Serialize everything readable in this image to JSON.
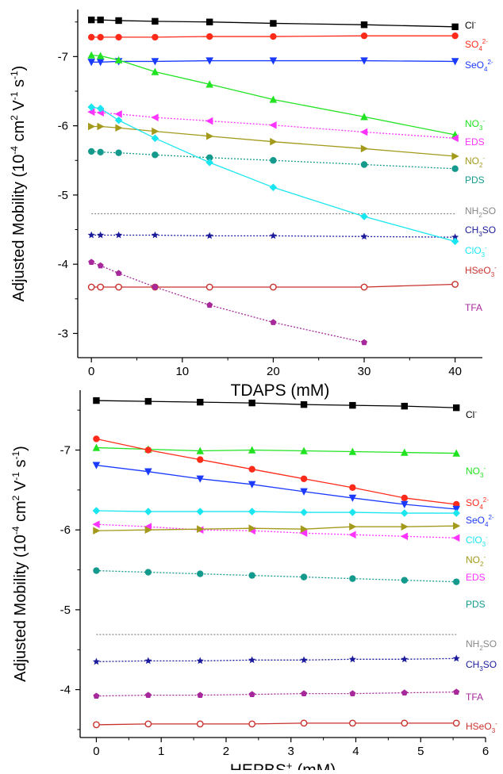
{
  "chart_data": [
    {
      "type": "line",
      "xlabel": "TDAPS (mM)",
      "ylabel": "Adjusted Mobility (10⁻⁴ cm² V⁻¹ s⁻¹)",
      "xlim": [
        -1.5,
        43
      ],
      "ylim": [
        -2.65,
        -7.68
      ],
      "x_ticks": [
        0,
        10,
        20,
        30,
        40
      ],
      "y_ticks": [
        -3,
        -4,
        -5,
        -6,
        -7
      ],
      "legend": "series labels at right end of each curve",
      "grid": false,
      "series": [
        {
          "name": "Cl⁻",
          "color": "#000000",
          "marker": "square",
          "dash": false,
          "x": [
            0,
            1,
            3,
            7,
            13,
            20,
            30,
            40
          ],
          "y": [
            -7.53,
            -7.53,
            -7.52,
            -7.51,
            -7.5,
            -7.48,
            -7.46,
            -7.43
          ]
        },
        {
          "name": "SO₄²⁻",
          "color": "#ff2a1a",
          "marker": "circle",
          "dash": false,
          "x": [
            0,
            1,
            3,
            7,
            13,
            20,
            30,
            40
          ],
          "y": [
            -7.28,
            -7.28,
            -7.28,
            -7.28,
            -7.29,
            -7.29,
            -7.3,
            -7.3
          ]
        },
        {
          "name": "SeO₄²⁻",
          "color": "#1a3aff",
          "marker": "triangle-down",
          "dash": false,
          "x": [
            0,
            1,
            3,
            7,
            13,
            20,
            30,
            40
          ],
          "y": [
            -6.92,
            -6.92,
            -6.93,
            -6.93,
            -6.94,
            -6.94,
            -6.94,
            -6.93
          ]
        },
        {
          "name": "NO₃⁻",
          "color": "#22e322",
          "marker": "triangle-up",
          "dash": false,
          "x": [
            0,
            1,
            3,
            7,
            13,
            20,
            30,
            40
          ],
          "y": [
            -7.02,
            -7.01,
            -6.95,
            -6.78,
            -6.6,
            -6.38,
            -6.13,
            -5.87
          ]
        },
        {
          "name": "EDS",
          "color": "#ff33ff",
          "marker": "triangle-left",
          "dash": true,
          "x": [
            0,
            1,
            3,
            7,
            13,
            20,
            30,
            40
          ],
          "y": [
            -6.2,
            -6.19,
            -6.17,
            -6.12,
            -6.07,
            -6.01,
            -5.91,
            -5.82
          ]
        },
        {
          "name": "NO₂⁻",
          "color": "#a39a1c",
          "marker": "triangle-right",
          "dash": false,
          "x": [
            0,
            1,
            3,
            7,
            13,
            20,
            30,
            40
          ],
          "y": [
            -5.99,
            -5.99,
            -5.97,
            -5.92,
            -5.85,
            -5.77,
            -5.67,
            -5.56
          ]
        },
        {
          "name": "PDS",
          "color": "#139a8c",
          "marker": "circle",
          "dash": true,
          "x": [
            0,
            1,
            3,
            7,
            13,
            20,
            30,
            40
          ],
          "y": [
            -5.63,
            -5.62,
            -5.61,
            -5.58,
            -5.54,
            -5.5,
            -5.44,
            -5.38
          ]
        },
        {
          "name": "NH₂SO",
          "color": "#888888",
          "marker": "none",
          "dash": true,
          "x": [
            0,
            40
          ],
          "y": [
            -4.73,
            -4.73
          ]
        },
        {
          "name": "CH₃SO",
          "color": "#1a1a9a",
          "marker": "star",
          "dash": true,
          "x": [
            0,
            1,
            3,
            7,
            13,
            20,
            30,
            40
          ],
          "y": [
            -4.42,
            -4.42,
            -4.42,
            -4.42,
            -4.41,
            -4.41,
            -4.4,
            -4.39
          ]
        },
        {
          "name": "ClO₃⁻",
          "color": "#1ae6f0",
          "marker": "diamond",
          "dash": false,
          "x": [
            0,
            1,
            3,
            7,
            13,
            20,
            30,
            40
          ],
          "y": [
            -6.27,
            -6.25,
            -6.08,
            -5.82,
            -5.47,
            -5.11,
            -4.69,
            -4.33
          ]
        },
        {
          "name": "HSeO₃⁻",
          "color": "#c8322e",
          "marker": "circle-open",
          "dash": false,
          "x": [
            0,
            1,
            3,
            7,
            13,
            20,
            30,
            40
          ],
          "y": [
            -3.67,
            -3.67,
            -3.67,
            -3.67,
            -3.67,
            -3.67,
            -3.67,
            -3.71
          ]
        },
        {
          "name": "TFA",
          "color": "#a6289a",
          "marker": "pentagon",
          "dash": true,
          "x": [
            0,
            1,
            3,
            7,
            13,
            20,
            30
          ],
          "y": [
            -4.03,
            -3.98,
            -3.87,
            -3.67,
            -3.41,
            -3.16,
            -2.87
          ]
        }
      ]
    },
    {
      "type": "line",
      "xlabel": "HEPBS⁺ (mM)",
      "ylabel": "Adjusted Mobility (10⁻⁴ cm² V⁻¹ s⁻¹)",
      "xlim": [
        -0.25,
        6.0
      ],
      "ylim": [
        -3.4,
        -7.75
      ],
      "x_ticks": [
        0,
        1,
        2,
        3,
        4,
        5,
        6
      ],
      "y_ticks": [
        -4,
        -5,
        -6,
        -7
      ],
      "legend": "series labels at right end of each curve",
      "grid": false,
      "series": [
        {
          "name": "Cl⁻",
          "color": "#000000",
          "marker": "square",
          "dash": false,
          "x": [
            0,
            0.8,
            1.6,
            2.4,
            3.2,
            3.95,
            4.75,
            5.55
          ],
          "y": [
            -7.62,
            -7.61,
            -7.6,
            -7.59,
            -7.57,
            -7.56,
            -7.55,
            -7.53
          ]
        },
        {
          "name": "NO₃⁻",
          "color": "#22e322",
          "marker": "triangle-up",
          "dash": false,
          "x": [
            0,
            0.8,
            1.6,
            2.4,
            3.2,
            3.95,
            4.75,
            5.55
          ],
          "y": [
            -7.03,
            -7.01,
            -6.99,
            -7.0,
            -6.99,
            -6.98,
            -6.97,
            -6.96
          ]
        },
        {
          "name": "SO₄²⁻",
          "color": "#ff2a1a",
          "marker": "circle",
          "dash": false,
          "x": [
            0,
            0.8,
            1.6,
            2.4,
            3.2,
            3.95,
            4.75,
            5.55
          ],
          "y": [
            -7.14,
            -7.0,
            -6.88,
            -6.76,
            -6.64,
            -6.53,
            -6.4,
            -6.32
          ]
        },
        {
          "name": "SeO₄²⁻",
          "color": "#1a3aff",
          "marker": "triangle-down",
          "dash": false,
          "x": [
            0,
            0.8,
            1.6,
            2.4,
            3.2,
            3.95,
            4.75,
            5.55
          ],
          "y": [
            -6.81,
            -6.73,
            -6.64,
            -6.57,
            -6.48,
            -6.4,
            -6.32,
            -6.26
          ]
        },
        {
          "name": "ClO₃⁻",
          "color": "#1ae6f0",
          "marker": "diamond",
          "dash": false,
          "x": [
            0,
            0.8,
            1.6,
            2.4,
            3.2,
            3.95,
            4.75,
            5.55
          ],
          "y": [
            -6.24,
            -6.23,
            -6.23,
            -6.23,
            -6.22,
            -6.22,
            -6.21,
            -6.21
          ]
        },
        {
          "name": "EDS",
          "color": "#ff33ff",
          "marker": "triangle-left",
          "dash": true,
          "x": [
            0,
            0.8,
            1.6,
            2.4,
            3.2,
            3.95,
            4.75,
            5.55
          ],
          "y": [
            -6.07,
            -6.04,
            -6.0,
            -5.99,
            -5.96,
            -5.94,
            -5.92,
            -5.9
          ]
        },
        {
          "name": "NO₂⁻",
          "color": "#a39a1c",
          "marker": "triangle-right",
          "dash": false,
          "x": [
            0,
            0.8,
            1.6,
            2.4,
            3.2,
            3.95,
            4.75,
            5.55
          ],
          "y": [
            -5.99,
            -6.0,
            -6.01,
            -6.02,
            -6.01,
            -6.04,
            -6.04,
            -6.05
          ]
        },
        {
          "name": "PDS",
          "color": "#139a8c",
          "marker": "circle",
          "dash": true,
          "x": [
            0,
            0.8,
            1.6,
            2.4,
            3.2,
            3.95,
            4.75,
            5.55
          ],
          "y": [
            -5.49,
            -5.47,
            -5.45,
            -5.43,
            -5.41,
            -5.39,
            -5.37,
            -5.35
          ]
        },
        {
          "name": "NH₂SO",
          "color": "#888888",
          "marker": "none",
          "dash": true,
          "x": [
            0,
            5.55
          ],
          "y": [
            -4.69,
            -4.69
          ]
        },
        {
          "name": "CH₃SO",
          "color": "#1a1a9a",
          "marker": "star",
          "dash": true,
          "x": [
            0,
            0.8,
            1.6,
            2.4,
            3.2,
            3.95,
            4.75,
            5.55
          ],
          "y": [
            -4.35,
            -4.36,
            -4.36,
            -4.37,
            -4.37,
            -4.38,
            -4.38,
            -4.39
          ]
        },
        {
          "name": "TFA",
          "color": "#a6289a",
          "marker": "pentagon",
          "dash": true,
          "x": [
            0,
            0.8,
            1.6,
            2.4,
            3.2,
            3.95,
            4.75,
            5.55
          ],
          "y": [
            -3.92,
            -3.93,
            -3.93,
            -3.94,
            -3.95,
            -3.95,
            -3.96,
            -3.97
          ]
        },
        {
          "name": "HSeO₃⁻",
          "color": "#c8322e",
          "marker": "circle-open",
          "dash": false,
          "x": [
            0,
            0.8,
            1.6,
            2.4,
            3.2,
            3.95,
            4.75,
            5.55
          ],
          "y": [
            -3.56,
            -3.57,
            -3.57,
            -3.57,
            -3.58,
            -3.58,
            -3.58,
            -3.58
          ]
        }
      ]
    }
  ]
}
